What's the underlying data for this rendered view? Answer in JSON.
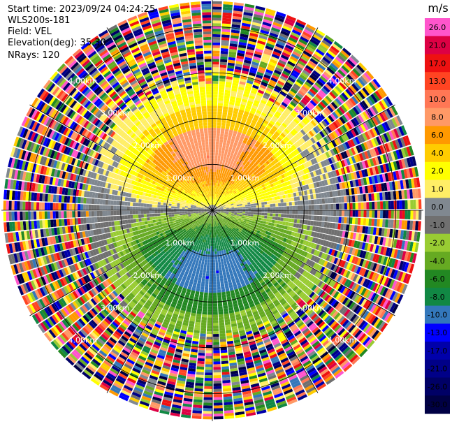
{
  "header": {
    "start_time": "Start time: 2023/09/24 04:24:25",
    "instrument": "WLS200s-181",
    "field": "Field: VEL",
    "elevation": "Elevation(deg): 35.30",
    "nrays": "NRays: 120"
  },
  "chart_data": {
    "type": "ppi",
    "unit": "m/s",
    "range_rings_km": [
      1.0,
      2.0,
      3.0,
      4.0
    ],
    "range_ring_labels": [
      "1.00km",
      "2.00km",
      "3.00km",
      "4.00km"
    ],
    "max_range_km": 4.6,
    "rays": 120,
    "colorbar": {
      "ticks": [
        "26.0",
        "21.0",
        "17.0",
        "13.0",
        "10.0",
        "8.0",
        "6.0",
        "4.0",
        "2.0",
        "1.0",
        "0.0",
        "-1.0",
        "-2.0",
        "-4.0",
        "-6.0",
        "-8.0",
        "-10.0",
        "-13.0",
        "-17.0",
        "-21.0",
        "-26.0",
        "-30.0"
      ],
      "colors": [
        "#ff55cc",
        "#dd0044",
        "#ee1111",
        "#ff4422",
        "#ff7755",
        "#ff9966",
        "#ff9900",
        "#ffcc00",
        "#ffff00",
        "#ffee66",
        "#808890",
        "#707070",
        "#99cc33",
        "#66aa22",
        "#228822",
        "#118844",
        "#3377bb",
        "#0000ff",
        "#0000aa",
        "#000088",
        "#000066",
        "#000044"
      ]
    },
    "pattern": {
      "receding_sector_deg": [
        -95,
        95
      ],
      "approaching_sector_deg": [
        95,
        265
      ],
      "clean_range_km": 2.7,
      "noisy_range_km": 3.2
    }
  }
}
